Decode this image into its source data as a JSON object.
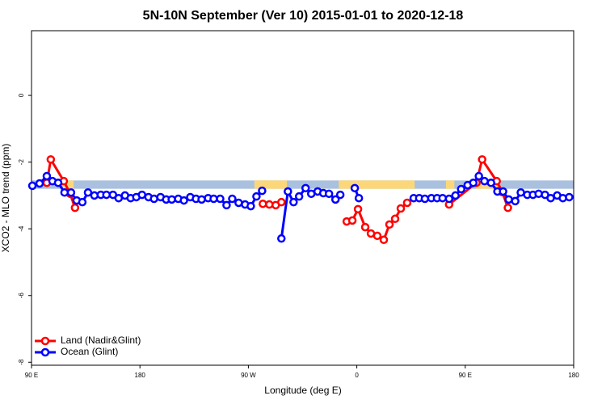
{
  "chart_data": {
    "type": "line",
    "title": "5N-10N September (Ver 10)   2015-01-01 to 2020-12-18",
    "x_label": "Longitude (deg E)",
    "y_label": "XCO2 - MLO trend (ppm)",
    "xlim": [
      90,
      540
    ],
    "xticks": [
      {
        "value": 90,
        "label": "90 E"
      },
      {
        "value": 180,
        "label": "180"
      },
      {
        "value": 270,
        "label": "90 W"
      },
      {
        "value": 360,
        "label": "0"
      },
      {
        "value": 450,
        "label": "90 E"
      },
      {
        "value": 540,
        "label": "180"
      }
    ],
    "ylim": [
      -8.09,
      1.94
    ],
    "yticks": [
      0,
      -2,
      -4,
      -6,
      -8
    ],
    "legend": "bottom-left",
    "band": {
      "ylim": [
        -2.55,
        -2.8
      ],
      "color": "#a9c0de",
      "land_color": "#fcd77a",
      "land_spans": [
        [
          116,
          125
        ],
        [
          275,
          285
        ],
        [
          283,
          302
        ],
        [
          345,
          408
        ],
        [
          434,
          441
        ],
        [
          459,
          479
        ]
      ]
    },
    "series": [
      {
        "name": "Land (Nadir&Glint)",
        "color": "#ff0000",
        "x": [
          102.7,
          106,
          116.8,
          122.1,
          126.1,
          null,
          282,
          287.4,
          292.7,
          297.4,
          null,
          351.6,
          356.3,
          361,
          367,
          371.7,
          377,
          382.4,
          387.1,
          391.8,
          396.5,
          401.8,
          null,
          436.6,
          459.3,
          464,
          476.1,
          480.8,
          485.4
        ],
        "values": [
          -2.62,
          -1.92,
          -2.57,
          -2.95,
          -3.37,
          null,
          -3.25,
          -3.27,
          -3.29,
          -3.2,
          null,
          -3.78,
          -3.75,
          -3.41,
          -3.95,
          -4.14,
          -4.21,
          -4.33,
          -3.87,
          -3.7,
          -3.39,
          -3.22,
          null,
          -3.27,
          -2.62,
          -1.92,
          -2.57,
          -2.9,
          -3.37
        ]
      },
      {
        "name": "Ocean (Glint)",
        "color": "#0000ff",
        "x": [
          90.7,
          96.7,
          102.7,
          107.4,
          112.1,
          117.4,
          122.8,
          127.5,
          132.2,
          136.9,
          142.2,
          147.5,
          152.2,
          157.6,
          162.3,
          167.6,
          172.3,
          177,
          181.7,
          187.1,
          191.7,
          197.1,
          201.8,
          206.4,
          211.8,
          216.5,
          221.8,
          226.5,
          231.2,
          236.6,
          241.2,
          246.6,
          251.9,
          256.6,
          261.9,
          267.3,
          272,
          276.7,
          281.4,
          null,
          297.4,
          302.8,
          307.5,
          312.1,
          317.5,
          322.2,
          327.5,
          332.2,
          336.9,
          342.3,
          346.3,
          null,
          358.3,
          361.7,
          null,
          407.2,
          411.8,
          416.5,
          421.9,
          426.6,
          431.2,
          436.6,
          441.9,
          446.6,
          452,
          456.7,
          461.3,
          466,
          471.4,
          476.7,
          481.4,
          486.1,
          491.5,
          496.1,
          501.5,
          506.2,
          510.9,
          516.2,
          520.9,
          526.3,
          531,
          536.3
        ],
        "values": [
          -2.71,
          -2.64,
          -2.42,
          -2.57,
          -2.62,
          -2.91,
          -2.91,
          -3.15,
          -3.2,
          -2.91,
          -3.0,
          -2.98,
          -2.98,
          -2.98,
          -3.08,
          -3.0,
          -3.08,
          -3.05,
          -2.98,
          -3.05,
          -3.1,
          -3.05,
          -3.12,
          -3.12,
          -3.1,
          -3.15,
          -3.05,
          -3.1,
          -3.12,
          -3.08,
          -3.1,
          -3.1,
          -3.29,
          -3.1,
          -3.22,
          -3.27,
          -3.32,
          -3.03,
          -2.86,
          null,
          -4.29,
          -2.88,
          -3.2,
          -3.03,
          -2.78,
          -2.95,
          -2.88,
          -2.93,
          -2.95,
          -3.12,
          -2.98,
          null,
          -2.78,
          -3.08,
          null,
          -3.08,
          -3.08,
          -3.1,
          -3.08,
          -3.08,
          -3.08,
          -3.1,
          -3.0,
          -2.81,
          -2.69,
          -2.62,
          -2.42,
          -2.57,
          -2.62,
          -2.88,
          -2.88,
          -3.12,
          -3.17,
          -2.91,
          -2.98,
          -2.98,
          -2.95,
          -2.98,
          -3.08,
          -3.0,
          -3.08,
          -3.05
        ]
      }
    ]
  }
}
